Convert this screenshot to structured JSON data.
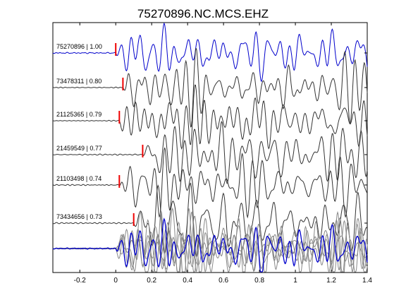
{
  "chart_data": {
    "type": "line",
    "title": "75270896.NC.MCS.EHZ",
    "xlabel": "",
    "ylabel": "",
    "xlim": [
      -0.35,
      1.4
    ],
    "xticks": [
      -0.2,
      0,
      0.2,
      0.4,
      0.6,
      0.8,
      1,
      1.2,
      1.4
    ],
    "xtick_labels": [
      "-0.2",
      "0",
      "0.2",
      "0.4",
      "0.6",
      "0.8",
      "1",
      "1.2",
      "1.4"
    ],
    "grid": false,
    "colors": {
      "reference": "#0000cc",
      "trace": "#333333",
      "overlay": "#888888",
      "pick": "#ee0000"
    },
    "traces": [
      {
        "label": "75270896 | 1.00",
        "pick_time": 0.0,
        "reference": true
      },
      {
        "label": "73478311 | 0.80",
        "pick_time": 0.04
      },
      {
        "label": "21125365 | 0.79",
        "pick_time": 0.02
      },
      {
        "label": "21459549 | 0.77",
        "pick_time": 0.15
      },
      {
        "label": "21103498 | 0.74",
        "pick_time": 0.02
      },
      {
        "label": "73434656 | 0.73",
        "pick_time": 0.1
      }
    ],
    "stack": {
      "description": ""
    }
  }
}
